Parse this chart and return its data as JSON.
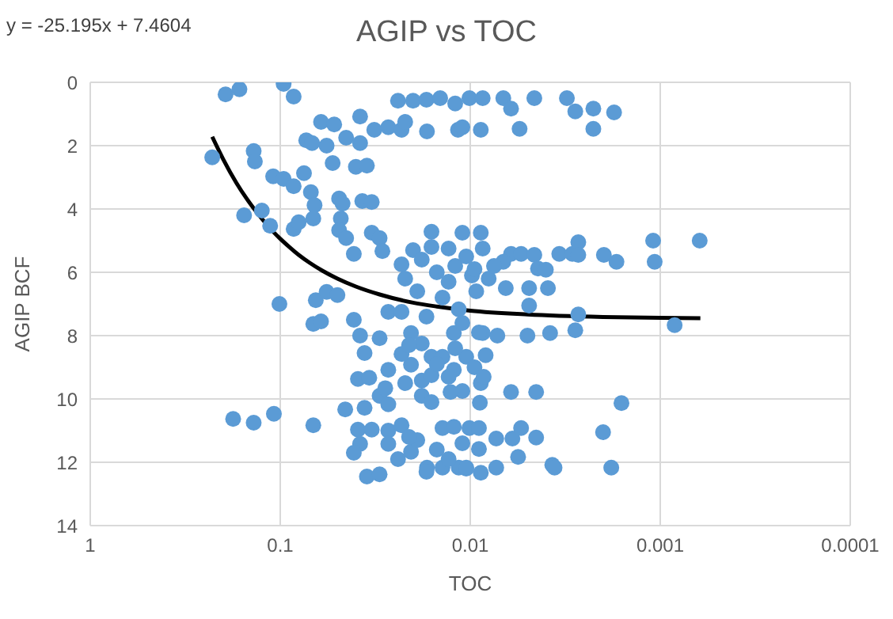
{
  "chart_data": {
    "type": "scatter",
    "title": "AGIP vs TOC",
    "xlabel": "TOC",
    "ylabel": "AGIP BCF",
    "annotations": [
      "y = -25.195x + 7.4604"
    ],
    "xlim": [
      1,
      0.0001
    ],
    "xticks": [
      1,
      0.1,
      0.01,
      0.001,
      0.0001
    ],
    "log": "x",
    "ylim": [
      14,
      0
    ],
    "yticks": [
      0,
      2,
      4,
      6,
      8,
      10,
      12,
      14
    ],
    "grid": true,
    "marker": "circle",
    "series": [
      {
        "color": "#5b9bd5",
        "x": [
          0.194,
          0.164,
          0.096,
          0.085,
          0.228,
          0.138,
          0.136,
          0.109,
          0.096,
          0.085,
          0.075,
          0.069,
          0.066,
          0.067,
          0.125,
          0.155,
          0.113,
          0.085,
          0.08,
          0.073,
          0.068,
          0.061,
          0.052,
          0.057,
          0.053,
          0.045,
          0.038,
          0.049,
          0.047,
          0.048,
          0.049,
          0.045,
          0.041,
          0.04,
          0.035,
          0.038,
          0.037,
          0.033,
          0.033,
          0.03,
          0.029,
          0.032,
          0.027,
          0.023,
          0.0169,
          0.022,
          0.024,
          0.02,
          0.017,
          0.0144,
          0.012,
          0.0116,
          0.023,
          0.016,
          0.013,
          0.011,
          0.0101,
          0.0086,
          0.0067,
          0.0061,
          0.0046,
          0.0031,
          0.0028,
          0.00225,
          0.00175,
          0.0055,
          0.00225,
          0.0088,
          0.011,
          0.0088,
          0.0086,
          0.0061,
          0.0054,
          0.0046,
          0.0034,
          0.0029,
          0.0027,
          0.0027,
          0.00198,
          0.0017,
          0.00109,
          0.00107,
          0.00062,
          0.0044,
          0.0067,
          0.101,
          0.065,
          0.057,
          0.05,
          0.067,
          0.061,
          0.041,
          0.038,
          0.036,
          0.039,
          0.034,
          0.036,
          0.0455,
          0.177,
          0.138,
          0.108,
          0.067,
          0.039,
          0.033,
          0.038,
          0.041,
          0.035,
          0.03,
          0.027,
          0.023,
          0.027,
          0.024,
          0.0205,
          0.0169,
          0.014,
          0.0115,
          0.0105,
          0.014,
          0.0122,
          0.0101,
          0.03,
          0.027,
          0.023,
          0.0205,
          0.018,
          0.016,
          0.014,
          0.0122,
          0.0122,
          0.0115,
          0.011,
          0.0127,
          0.03,
          0.027,
          0.022,
          0.018,
          0.016,
          0.0205,
          0.023,
          0.027,
          0.028,
          0.0065,
          0.0049,
          0.0039,
          0.004,
          0.0049,
          0.0027,
          0.0028,
          0.0038,
          0.005,
          0.0072,
          0.0086,
          0.0083,
          0.0105,
          0.00084,
          0.0088,
          0.0061,
          0.0045,
          0.0089,
          0.0016,
          0.002,
          0.009,
          0.0073,
          0.006,
          0.0054,
          0.0045,
          0.0056,
          0.0037,
          0.0036,
          0.00181,
          0.0073,
          0.0088,
          0.0105,
          0.009,
          0.02,
          0.018,
          0.015,
          0.013,
          0.016,
          0.012,
          0.022,
          0.019,
          0.014,
          0.017,
          0.021,
          0.015,
          0.013,
          0.018,
          0.016,
          0.019,
          0.015,
          0.013,
          0.017,
          0.021,
          0.011,
          0.012,
          0.011,
          0.0105,
          0.0098,
          0.0095,
          0.0093,
          0.008,
          0.0075,
          0.009,
          0.0095,
          0.0085
        ],
        "values": [
          0.38,
          0.22,
          0.05,
          0.45,
          2.37,
          2.17,
          2.5,
          2.97,
          3.05,
          3.28,
          2.87,
          3.47,
          3.88,
          4.3,
          4.05,
          4.2,
          4.53,
          4.63,
          4.42,
          1.83,
          1.92,
          1.25,
          1.33,
          2.0,
          2.55,
          1.75,
          1.08,
          3.67,
          3.83,
          4.3,
          4.67,
          4.92,
          5.42,
          2.67,
          2.63,
          1.92,
          3.75,
          3.78,
          4.75,
          4.92,
          5.33,
          1.5,
          1.42,
          1.5,
          1.55,
          1.25,
          0.58,
          0.58,
          0.55,
          0.5,
          0.67,
          1.5,
          5.75,
          4.72,
          5.25,
          4.75,
          0.5,
          0.5,
          0.5,
          0.83,
          0.5,
          0.5,
          0.92,
          0.83,
          0.95,
          1.47,
          1.47,
          1.5,
          1.42,
          4.75,
          5.25,
          5.42,
          5.42,
          5.45,
          5.42,
          5.42,
          5.05,
          5.45,
          5.45,
          5.67,
          5.0,
          5.67,
          5.0,
          5.88,
          5.67,
          7.0,
          6.88,
          6.62,
          6.72,
          7.63,
          7.55,
          7.5,
          8.0,
          8.55,
          9.37,
          9.33,
          10.28,
          10.33,
          10.63,
          10.75,
          10.47,
          10.83,
          10.97,
          10.97,
          11.42,
          11.7,
          12.45,
          12.38,
          11.0,
          10.83,
          11.42,
          11.9,
          11.67,
          12.17,
          12.17,
          12.17,
          12.2,
          10.92,
          10.88,
          10.92,
          8.08,
          7.25,
          7.25,
          7.92,
          8.25,
          8.67,
          8.67,
          9.08,
          7.92,
          7.17,
          9.75,
          9.78,
          9.9,
          10.17,
          9.5,
          9.42,
          9.25,
          8.92,
          8.58,
          9.08,
          9.66,
          6.5,
          6.5,
          6.5,
          5.92,
          7.05,
          7.33,
          7.83,
          7.92,
          8.0,
          8.0,
          7.92,
          8.62,
          8.67,
          7.67,
          9.5,
          9.78,
          9.78,
          10.12,
          10.13,
          11.05,
          10.92,
          11.25,
          11.25,
          10.92,
          11.22,
          11.83,
          12.08,
          12.17,
          12.17,
          12.17,
          12.33,
          12.17,
          11.58,
          5.3,
          5.6,
          6.0,
          6.3,
          5.2,
          5.8,
          6.2,
          6.6,
          6.8,
          7.4,
          8.3,
          8.9,
          9.3,
          9.9,
          10.1,
          11.3,
          11.6,
          11.9,
          12.3,
          11.2,
          11.4,
          8.4,
          7.6,
          5.5,
          6.1,
          5.9,
          6.6,
          6.2,
          5.8,
          7.9,
          9.0,
          9.3
        ]
      },
      {
        "type": "line",
        "color": "#000000",
        "marker": "none",
        "line_style": "solid",
        "x": [
          0.228,
          0.2,
          0.17,
          0.15,
          0.13,
          0.11,
          0.1,
          0.09,
          0.08,
          0.07,
          0.06,
          0.05,
          0.04,
          0.03,
          0.02,
          0.015,
          0.01,
          0.005,
          0.002,
          0.001,
          0.000615
        ],
        "values": [
          1.72,
          2.42,
          3.18,
          3.68,
          4.18,
          4.69,
          4.94,
          5.19,
          5.45,
          5.7,
          5.95,
          6.2,
          6.45,
          6.7,
          6.96,
          7.08,
          7.21,
          7.33,
          7.41,
          7.44,
          7.45
        ]
      }
    ]
  }
}
